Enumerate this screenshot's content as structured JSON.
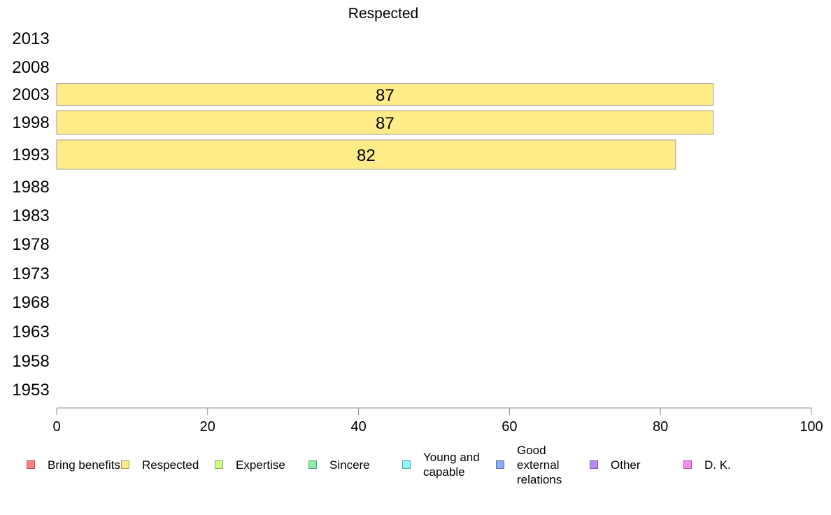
{
  "chart_data": {
    "type": "bar",
    "orientation": "horizontal",
    "title": "Respected",
    "categories": [
      "2013",
      "2008",
      "2003",
      "1998",
      "1993",
      "1988",
      "1983",
      "1978",
      "1973",
      "1968",
      "1963",
      "1958",
      "1953"
    ],
    "series": [
      {
        "name": "Respected",
        "values": [
          null,
          null,
          87,
          87,
          82,
          null,
          null,
          null,
          null,
          null,
          null,
          null,
          null
        ],
        "labels": [
          "",
          "",
          "87",
          "87",
          "82",
          "",
          "",
          "",
          "",
          "",
          "",
          "",
          ""
        ]
      }
    ],
    "xlim": [
      0,
      100
    ],
    "xticks": [
      "0",
      "20",
      "40",
      "60",
      "80",
      "100"
    ],
    "grid": false,
    "legend_position": "bottom",
    "legend": [
      {
        "label": "Bring benefits",
        "color": "#ff8080"
      },
      {
        "label": "Respected",
        "color": "#ffec88"
      },
      {
        "label": "Expertise",
        "color": "#ccff88"
      },
      {
        "label": "Sincere",
        "color": "#88f0a8"
      },
      {
        "label": "Young and capable",
        "color": "#88f8f8"
      },
      {
        "label": "Good external relations",
        "color": "#88aaff"
      },
      {
        "label": "Other",
        "color": "#bb88ff"
      },
      {
        "label": "D. K.",
        "color": "#ff88ee"
      }
    ],
    "bar_color": "#ffec88",
    "bar_border_color": "#a0a0a0"
  }
}
